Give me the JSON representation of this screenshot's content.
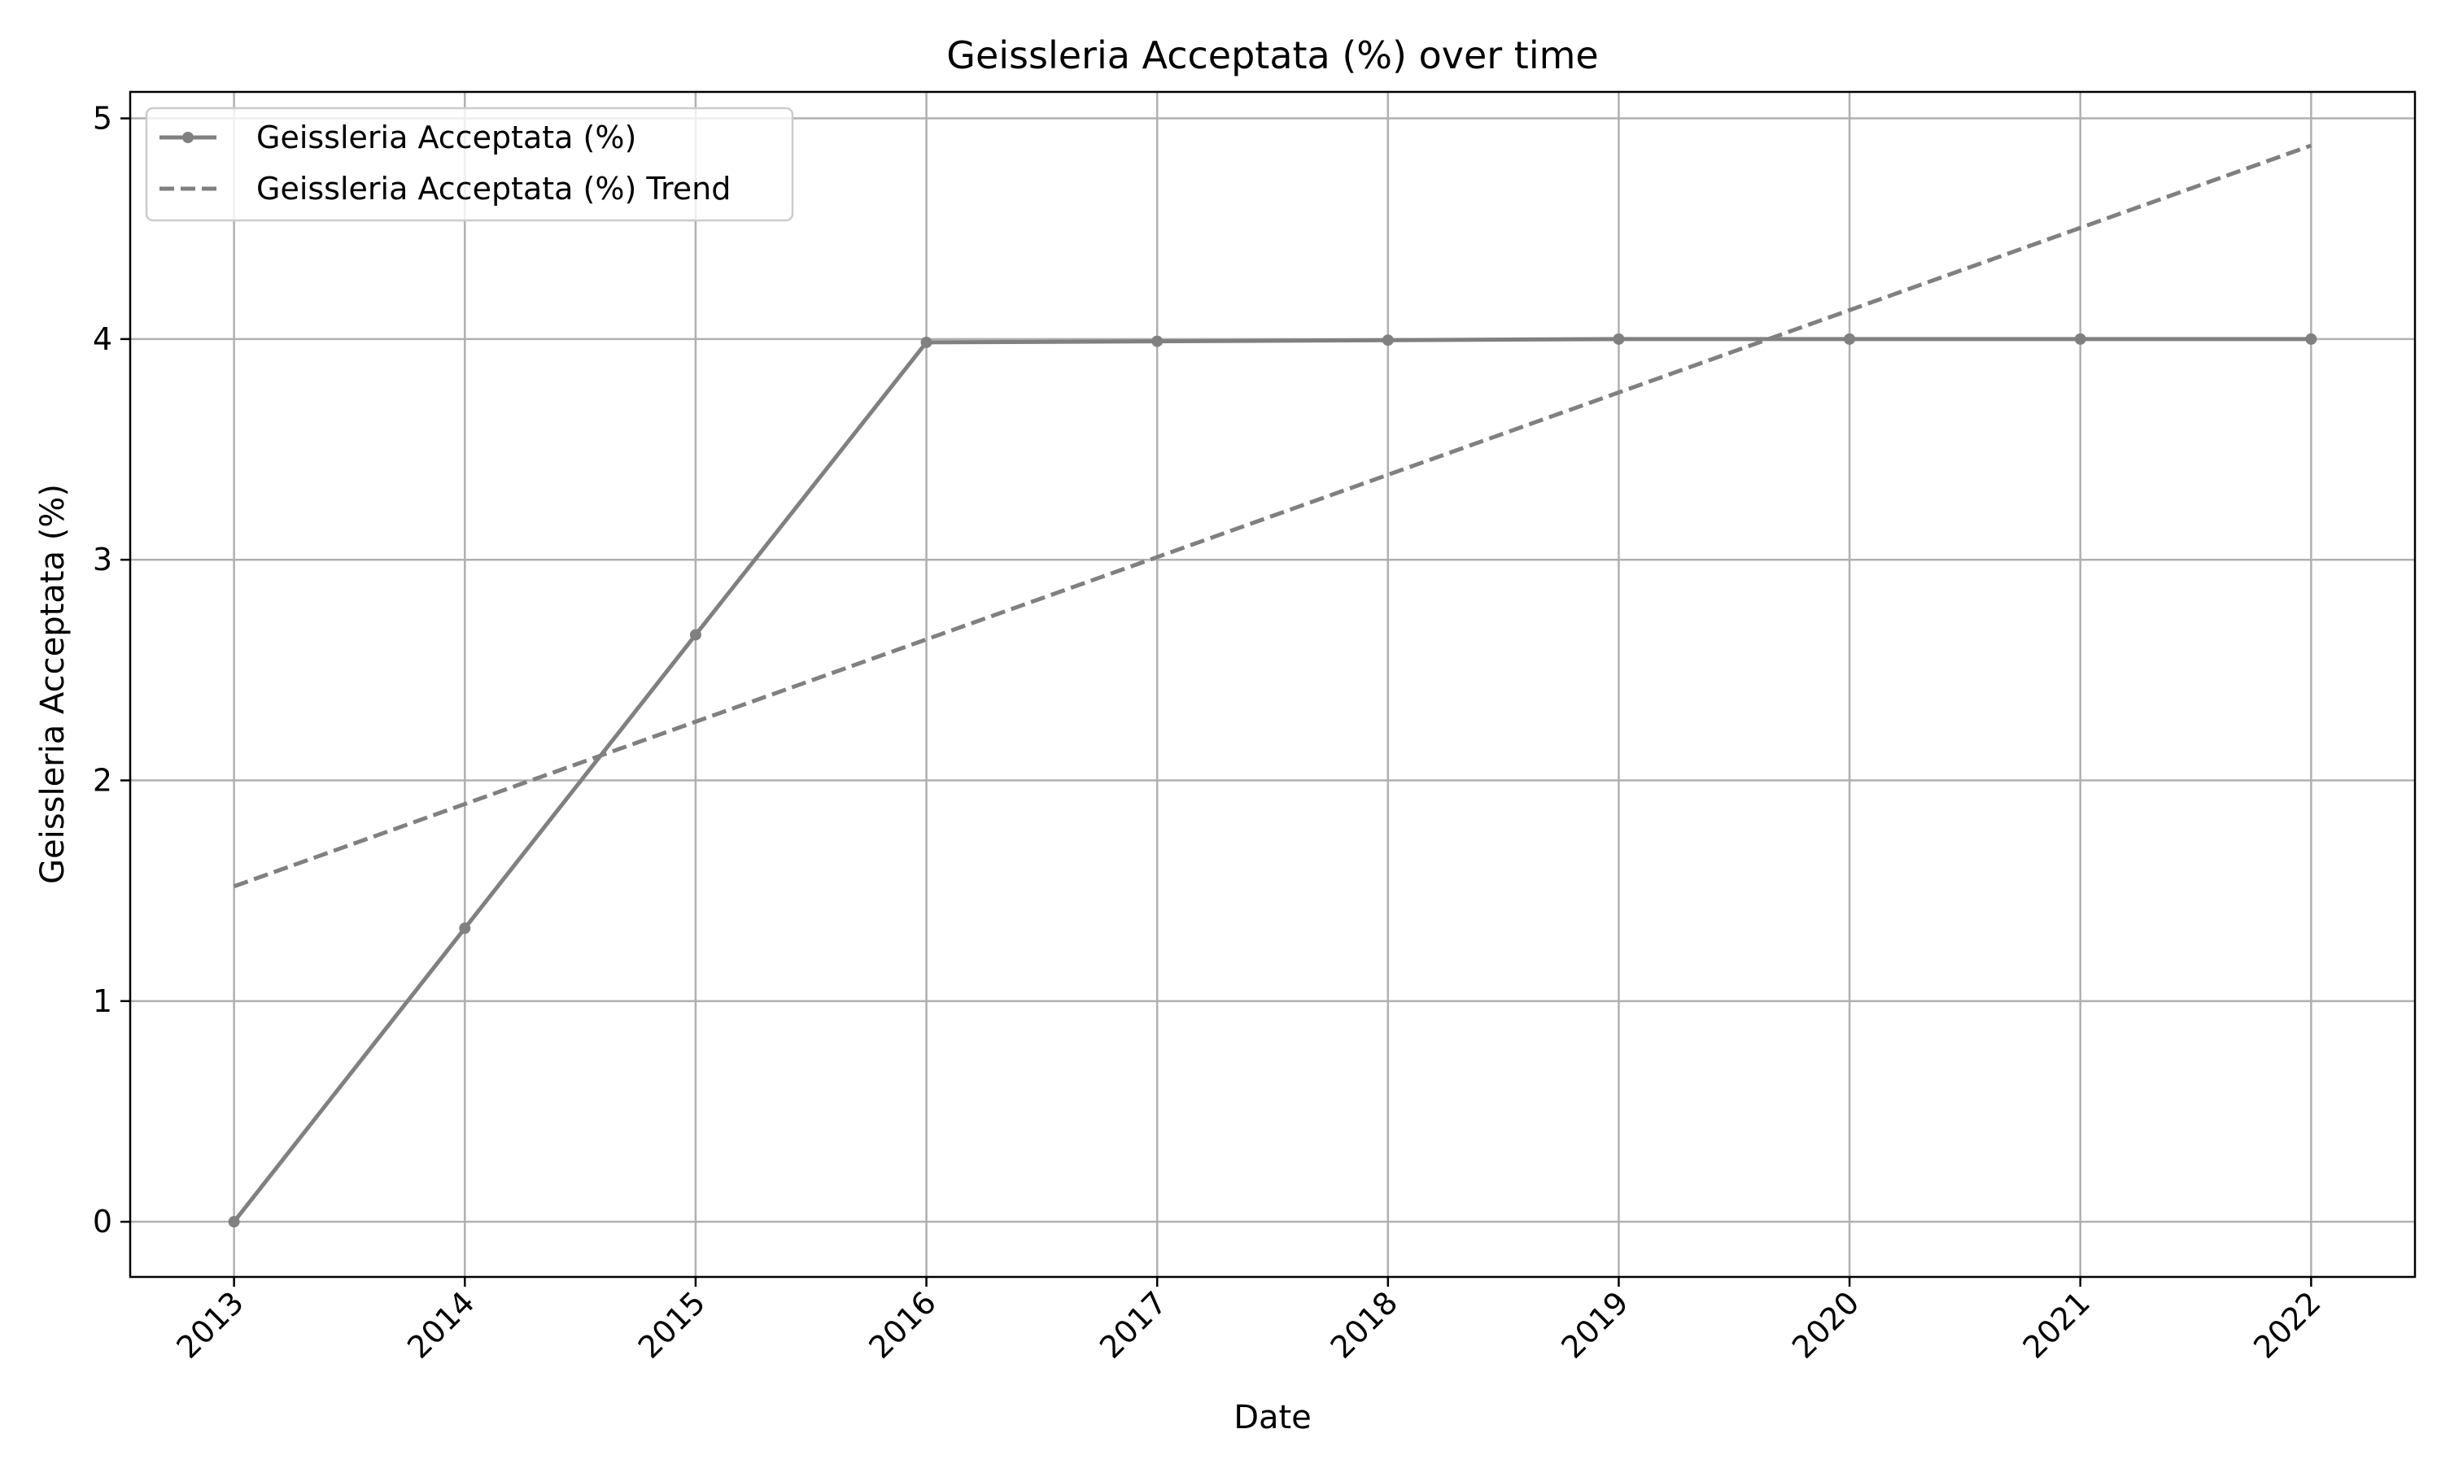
{
  "chart_data": {
    "type": "line",
    "title": "Geissleria Acceptata (%) over time",
    "xlabel": "Date",
    "ylabel": "Geissleria Acceptata (%)",
    "x": [
      "2013",
      "2014",
      "2015",
      "2016",
      "2017",
      "2018",
      "2019",
      "2020",
      "2021",
      "2022"
    ],
    "xlim": [
      2012.55,
      2022.45
    ],
    "ylim": [
      -0.25,
      5.12
    ],
    "yticks": [
      "0",
      "1",
      "2",
      "3",
      "4",
      "5"
    ],
    "grid": true,
    "legend_position": "upper-left",
    "series": [
      {
        "name": "Geissleria Acceptata (%)",
        "style": "solid-with-markers",
        "color": "#808080",
        "values": [
          0.0,
          1.33,
          2.66,
          3.985,
          3.99,
          3.995,
          4.0,
          4.0,
          4.0,
          4.0
        ]
      },
      {
        "name": "Geissleria Acceptata (%) Trend",
        "style": "dashed",
        "color": "#808080",
        "values": [
          1.52,
          1.893,
          2.266,
          2.639,
          3.012,
          3.385,
          3.758,
          4.131,
          4.504,
          4.877
        ]
      }
    ]
  }
}
